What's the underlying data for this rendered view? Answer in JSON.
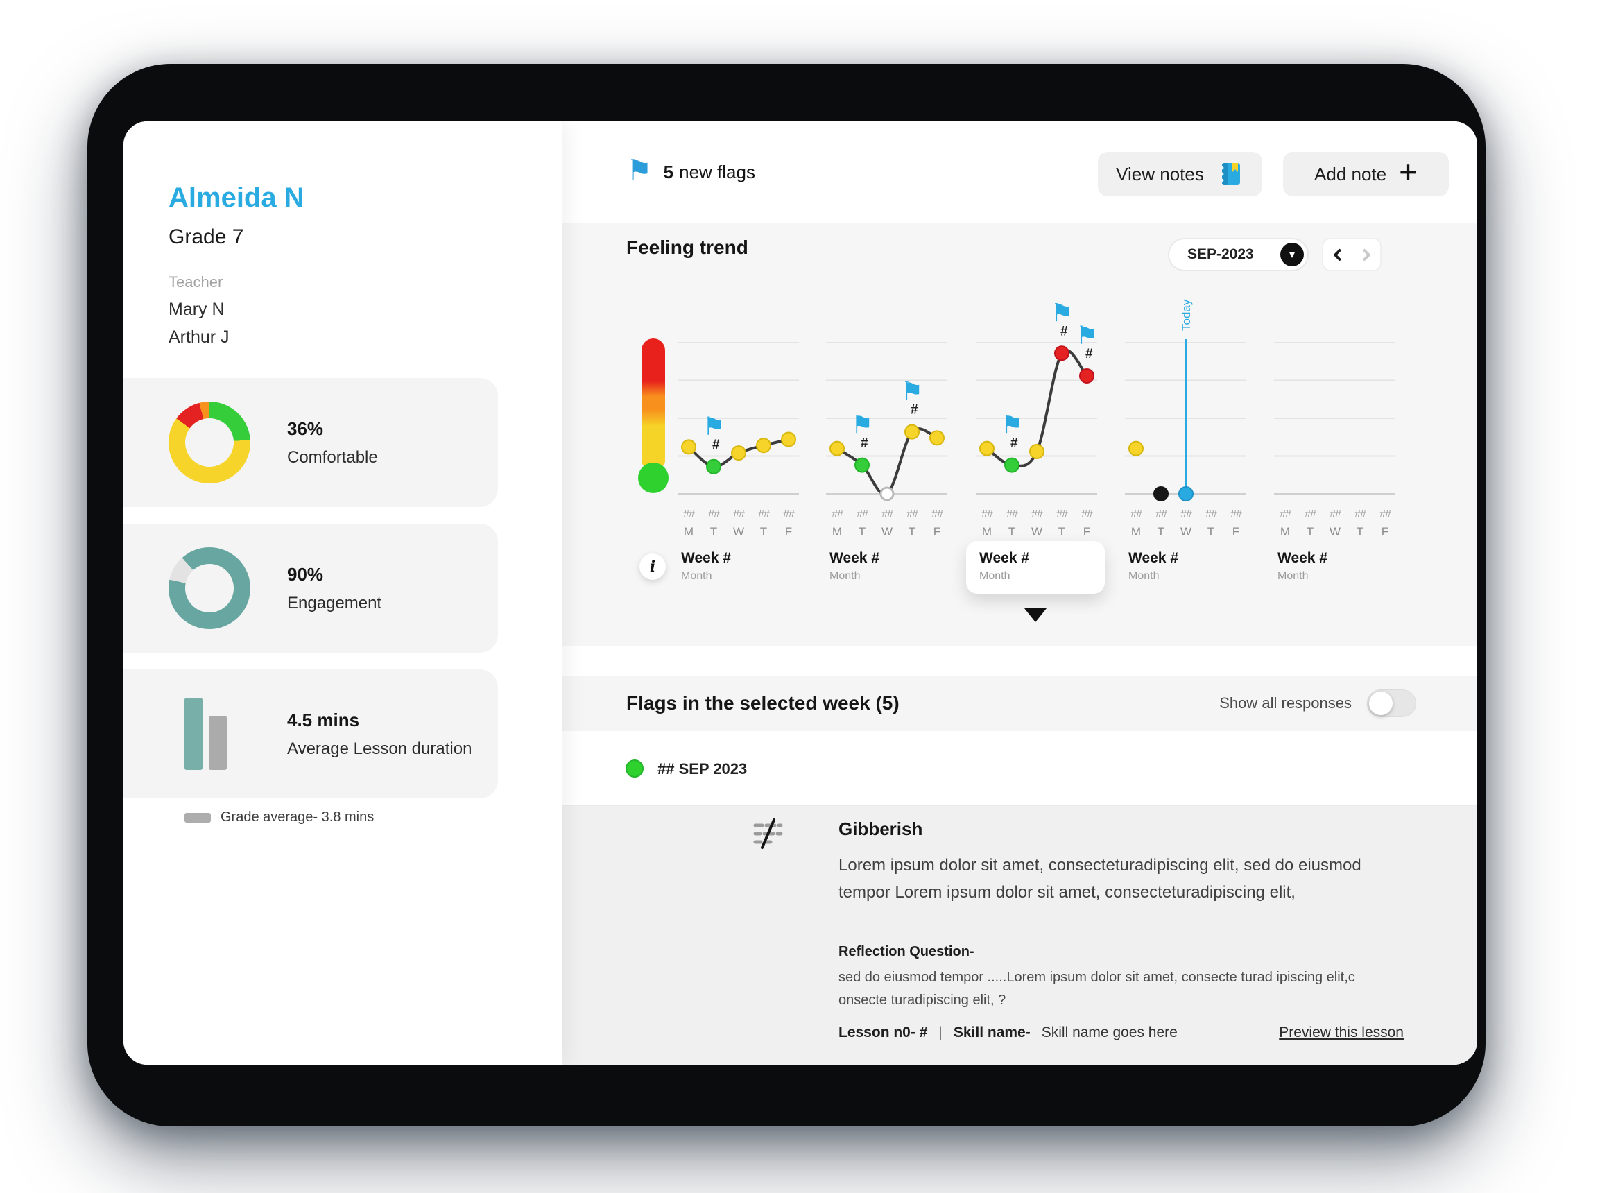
{
  "colors": {
    "accent_blue": "#29ABE2",
    "yellow": "#F6D42A",
    "green": "#2FD12F",
    "red": "#E52222",
    "orange": "#F8901D",
    "teal": "#68A7A1"
  },
  "icons": {
    "flag_glyph": "⚑",
    "caret_down_glyph": "▾",
    "plus_glyph": "+",
    "info_glyph": "i"
  },
  "sidebar": {
    "student_name": "Almeida N",
    "grade": "Grade 7",
    "teacher_label": "Teacher",
    "teachers": [
      "Mary N",
      "Arthur J"
    ],
    "stats": [
      {
        "value": "36%",
        "label": "Comfortable"
      },
      {
        "value": "90%",
        "label": "Engagement"
      },
      {
        "value": "4.5 mins",
        "label": "Average Lesson duration"
      }
    ],
    "grade_average_legend": "Grade average- 3.8 mins"
  },
  "header": {
    "new_flags_count": "5",
    "new_flags_label": "new flags",
    "view_notes_label": "View notes",
    "add_note_label": "Add note"
  },
  "feeling_trend": {
    "title": "Feeling trend",
    "month_selector": "SEP-2023",
    "today_label": "Today",
    "day_letters": [
      "M",
      "T",
      "W",
      "T",
      "F"
    ],
    "day_value": "##",
    "flag_hash": "#",
    "weeks": [
      {
        "label": "Week #",
        "sublabel": "Month",
        "selected": false,
        "line": true,
        "points": [
          {
            "day": 0,
            "v": 31,
            "c": "yellow"
          },
          {
            "day": 1,
            "v": 18,
            "c": "green",
            "flag": true
          },
          {
            "day": 2,
            "v": 27,
            "c": "yellow"
          },
          {
            "day": 3,
            "v": 32,
            "c": "yellow"
          },
          {
            "day": 4,
            "v": 36,
            "c": "yellow"
          }
        ]
      },
      {
        "label": "Week #",
        "sublabel": "Month",
        "selected": false,
        "line": true,
        "points": [
          {
            "day": 0,
            "v": 30,
            "c": "yellow"
          },
          {
            "day": 1,
            "v": 19,
            "c": "green",
            "flag": true
          },
          {
            "day": 2,
            "v": 0,
            "c": "hollow"
          },
          {
            "day": 3,
            "v": 41,
            "c": "yellow",
            "flag": true
          },
          {
            "day": 4,
            "v": 37,
            "c": "yellow"
          }
        ]
      },
      {
        "label": "Week #",
        "sublabel": "Month",
        "selected": true,
        "line": true,
        "points": [
          {
            "day": 0,
            "v": 30,
            "c": "yellow"
          },
          {
            "day": 1,
            "v": 19,
            "c": "green",
            "flag": true
          },
          {
            "day": 2,
            "v": 28,
            "c": "yellow"
          },
          {
            "day": 3,
            "v": 93,
            "c": "red",
            "flag": true
          },
          {
            "day": 4,
            "v": 78,
            "c": "red",
            "flag": true
          }
        ]
      },
      {
        "label": "Week #",
        "sublabel": "Month",
        "selected": false,
        "line": false,
        "points": [
          {
            "day": 0,
            "v": 30,
            "c": "yellow"
          },
          {
            "day": 1,
            "v": 0,
            "c": "black"
          },
          {
            "day": 2,
            "v": 0,
            "c": "blue",
            "today": true
          }
        ]
      },
      {
        "label": "Week #",
        "sublabel": "Month",
        "selected": false,
        "line": false,
        "points": []
      }
    ]
  },
  "flags_section": {
    "title": "Flags in the selected week (5)",
    "toggle_label": "Show all responses",
    "toggle_state": "off",
    "date_label": "## SEP 2023"
  },
  "flag_card": {
    "title": "Gibberish",
    "body": "Lorem ipsum dolor sit amet, consecteturadipiscing elit, sed do eiusmod tempor Lorem ipsum dolor sit amet, consecteturadipiscing elit,",
    "reflection_label": "Reflection Question-",
    "reflection_text": "sed do eiusmod tempor .....Lorem ipsum dolor sit amet, consecte turad ipiscing elit,c onsecte turadipiscing elit, ?",
    "lesson_label": "Lesson n0- #",
    "separator": "|",
    "skill_label": "Skill name-",
    "skill_value": "Skill name goes here",
    "preview_link": "Preview this lesson"
  }
}
